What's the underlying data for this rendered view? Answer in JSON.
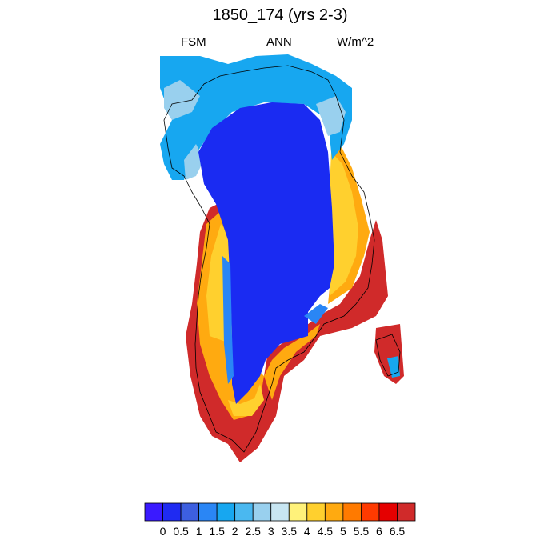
{
  "title": "1850_174 (yrs 2-3)",
  "subtitle_left": "FSM",
  "subtitle_center": "ANN",
  "subtitle_right": "W/m^2",
  "colorbar": {
    "labels": [
      "0",
      "0.5",
      "1",
      "1.5",
      "2",
      "2.5",
      "3",
      "3.5",
      "4",
      "4.5",
      "5",
      "5.5",
      "6",
      "6.5"
    ],
    "colors": [
      "#3a1aff",
      "#1f2bf2",
      "#3d5fe0",
      "#2a86f5",
      "#17a7f0",
      "#4ab8f0",
      "#99d0ee",
      "#c8e6f2",
      "#fff27a",
      "#ffd02e",
      "#ffaa10",
      "#ff7a00",
      "#ff3a00",
      "#e50000",
      "#d02a2a"
    ]
  }
}
